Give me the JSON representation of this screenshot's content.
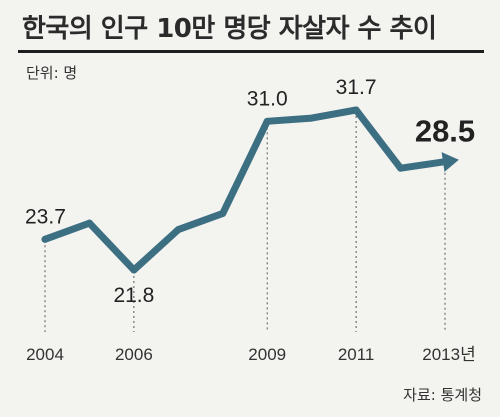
{
  "title": "한국의 인구 10만 명당 자살자 수 추이",
  "unit_label": "단위: 명",
  "source_label": "자료: 통계청",
  "colors": {
    "line": "#3d6f82",
    "background": "#f3f3f0"
  },
  "chart_data": {
    "type": "line",
    "x": [
      2004,
      2005,
      2006,
      2007,
      2008,
      2009,
      2010,
      2011,
      2012,
      2013
    ],
    "y": [
      23.7,
      24.7,
      21.8,
      24.3,
      25.3,
      31.0,
      31.2,
      31.7,
      28.1,
      28.5
    ],
    "tick_years": [
      2004,
      2006,
      2009,
      2011,
      2013
    ],
    "tick_labels": [
      "2004",
      "2006",
      "2009",
      "2011",
      "2013년"
    ],
    "labels": [
      {
        "year": 2004,
        "text": "23.7",
        "style": "normal",
        "pos": "above"
      },
      {
        "year": 2006,
        "text": "21.8",
        "style": "normal",
        "pos": "below"
      },
      {
        "year": 2009,
        "text": "31.0",
        "style": "normal",
        "pos": "above"
      },
      {
        "year": 2011,
        "text": "31.7",
        "style": "normal",
        "pos": "above"
      },
      {
        "year": 2013,
        "text": "28.5",
        "style": "bold",
        "pos": "above"
      }
    ],
    "arrow_end": true,
    "grid": false,
    "legend": "none"
  }
}
